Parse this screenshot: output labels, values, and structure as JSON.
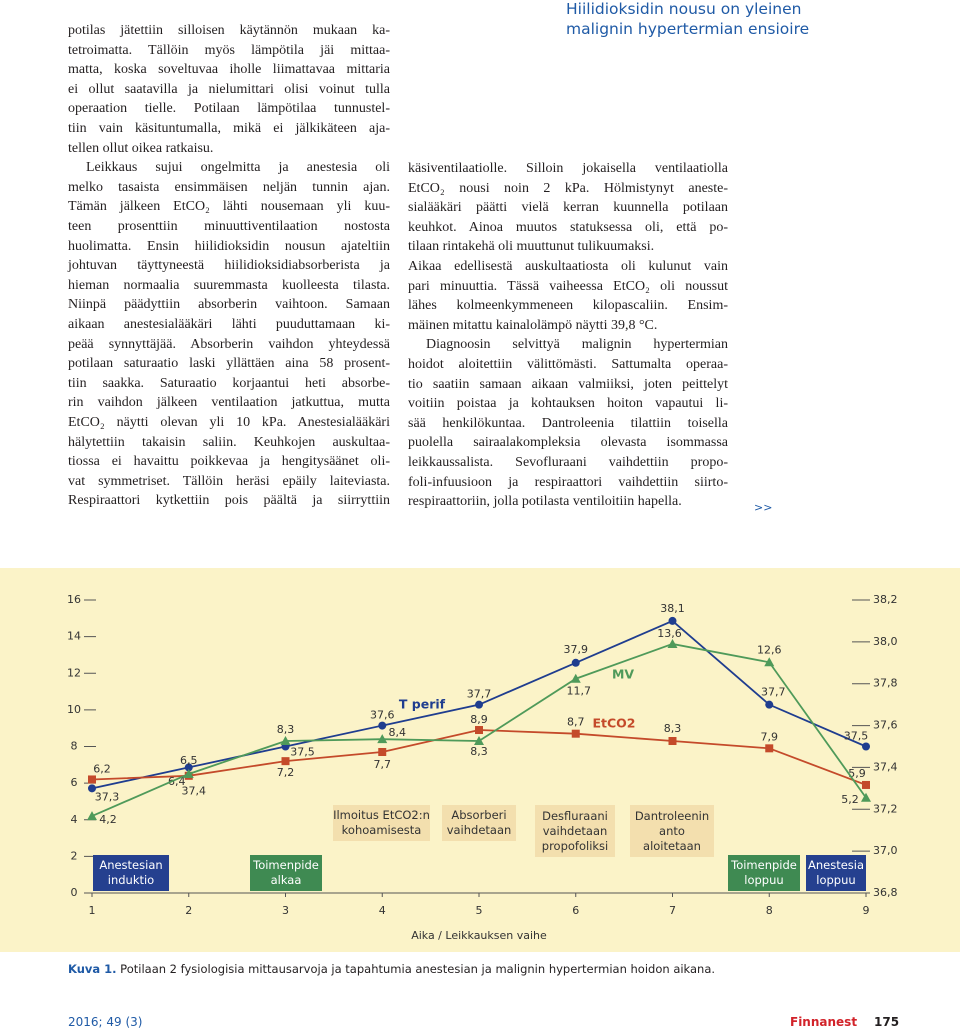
{
  "left_column": {
    "lines": [
      "potilas jätettiin silloisen käytännön mukaan ka-",
      "tetroimatta. Tällöin myös lämpötila jäi mittaa-",
      "matta, koska soveltuvaa iholle liimattavaa mittaria",
      "ei ollut saatavilla ja nielumittari olisi voinut tulla",
      "operaation tielle. Potilaan lämpötilaa tunnustel-",
      "tiin vain käsituntumalla, mikä ei jälkikäteen aja-",
      "tellen ollut oikea ratkaisu.",
      "Leikkaus sujui ongelmitta ja anestesia oli",
      "melko tasaista ensimmäisen neljän tunnin ajan.",
      "Tämän jälkeen EtCO₂ lähti nousemaan yli kuu-",
      "teen prosenttiin minuuttiventilaation nostosta",
      "huolimatta. Ensin hiilidioksidin nousun ajateltiin",
      "johtuvan täyttyneestä hiilidioksidiabsorberista ja",
      "hieman normaalia suuremmasta kuolleesta tilasta.",
      "Niinpä päädyttiin absorberin vaihtoon. Samaan",
      "aikaan anestesialääkäri lähti puuduttamaan ki-",
      "peää synnyttäjää. Absorberin vaihdon yhteydessä",
      "potilaan saturaatio laski yllättäen aina 58 prosent-",
      "tiin saakka. Saturaatio korjaantui heti absorbe-",
      "rin vaihdon jälkeen ventilaation jatkuttua, mutta",
      "EtCO₂ näytti olevan yli 10 kPa. Anestesialääkäri",
      "hälytettiin takaisin saliin. Keuhkojen auskultaa-",
      "tiossa ei havaittu poikkevaa ja hengitysäänet oli-",
      "vat symmetriset. Tällöin heräsi epäily laiteviasta.",
      "Respiraattori kytkettiin pois päältä ja siirryttiin"
    ]
  },
  "right_column": {
    "heading": [
      "Hiilidioksidin nousu on yleinen",
      "malignin hypertermian ensioire"
    ],
    "lines": [
      "käsiventilaatiolle. Silloin jokaisella ventilaatiolla",
      "EtCO₂ nousi noin 2 kPa. Hölmistynyt aneste-",
      "sialääkäri päätti vielä kerran kuunnella potilaan",
      "keuhkot. Ainoa muutos statuksessa oli, että po-",
      "tilaan rintakehä oli muuttunut tulikuumaksi.",
      "Aikaa edellisestä auskultaatiosta oli kulunut vain",
      "pari minuuttia. Tässä vaiheessa EtCO₂ oli noussut",
      "lähes kolmeenkymmeneen kilopascaliin. Ensim-",
      "mäinen mitattu kainalolämpö näytti 39,8 °C.",
      "Diagnoosin selvittyä malignin hypertermian",
      "hoidot aloitettiin välittömästi. Sattumalta operaa-",
      "tio saatiin samaan aikaan valmiiksi, joten peittelyt",
      "voitiin poistaa ja kohtauksen hoiton vapautui li-",
      "sää henkilökuntaa. Dantroleenia tilattiin toisella",
      "puolella sairaalakompleksia olevasta isommassa",
      "leikkaussalista. Sevofluraani vaihdettiin propo-",
      "foli-infuusioon ja respiraattori vaihdettiin siirto-",
      "respiraattoriin, jolla potilasta ventiloitiin hapella."
    ],
    "continue_mark": ">>"
  },
  "chart_data": {
    "type": "line",
    "xlabel": "Aika / Leikkauksen vaihe",
    "x": [
      1,
      2,
      3,
      4,
      5,
      6,
      7,
      8,
      9
    ],
    "xlim": [
      1,
      9
    ],
    "xticks": [
      1,
      2,
      3,
      4,
      5,
      6,
      7,
      8,
      9
    ],
    "ylim": [
      0,
      16
    ],
    "yticks": [
      0,
      2,
      4,
      6,
      8,
      10,
      12,
      14,
      16
    ],
    "y2lim": [
      36.8,
      38.2
    ],
    "y2ticks": [
      {
        "value": 36.8,
        "label": "36,8"
      },
      {
        "value": 37.0,
        "label": "37,0"
      },
      {
        "value": 37.2,
        "label": "37,2"
      },
      {
        "value": 37.4,
        "label": "37,4"
      },
      {
        "value": 37.6,
        "label": "37,6"
      },
      {
        "value": 37.8,
        "label": "37,8"
      },
      {
        "value": 38.0,
        "label": "38,0"
      },
      {
        "value": 38.2,
        "label": "38,2"
      }
    ],
    "series": [
      {
        "name": "T perif",
        "color": "#1f3d8f",
        "axis": "y2",
        "marker": "circle",
        "values": [
          37.3,
          37.4,
          37.5,
          37.6,
          37.7,
          37.9,
          38.1,
          37.7,
          37.5
        ],
        "value_labels": [
          "37,3",
          "37,4",
          "37,5",
          "37,6",
          "37,7",
          "37,9",
          "38,1",
          "37,7",
          "37,5"
        ]
      },
      {
        "name": "EtCO2",
        "color": "#c44a2a",
        "marker": "square",
        "values": [
          6.2,
          6.4,
          7.2,
          7.7,
          8.9,
          8.7,
          8.3,
          7.9,
          5.9
        ],
        "value_labels": [
          "6,2",
          "6,4",
          "7,2",
          "7,7",
          "8,9",
          "8,7",
          "8,3",
          "7,9",
          "5,9"
        ]
      },
      {
        "name": "MV",
        "color": "#4f9a5a",
        "marker": "triangle",
        "values": [
          4.2,
          6.5,
          8.3,
          8.4,
          8.3,
          11.7,
          13.6,
          12.6,
          5.2
        ],
        "value_labels": [
          "4,2",
          "6,5",
          "8,3",
          "8,4",
          "8,3",
          "11,7",
          "13,6",
          "12,6",
          "5,2"
        ]
      }
    ],
    "events": [
      {
        "label": "Anestesian\ninduktio",
        "color": "#25408f"
      },
      {
        "label": "Toimenpide\nalkaa",
        "color": "#3f8a52"
      },
      {
        "label": "Ilmoitus EtCO2:n\nkohoamisesta",
        "color": "#f3dfae"
      },
      {
        "label": "Absorberi\nvaihdetaan",
        "color": "#f3dfae"
      },
      {
        "label": "Desfluraani\nvaihdetaan\npropofoliksi",
        "color": "#f3dfae"
      },
      {
        "label": "Dantroleenin\nanto\naloitetaan",
        "color": "#f3dfae"
      },
      {
        "label": "Toimenpide\nloppuu",
        "color": "#3f8a52"
      },
      {
        "label": "Anestesia\nloppuu",
        "color": "#25408f"
      }
    ]
  },
  "caption": {
    "label": "Kuva 1.",
    "text": " Potilaan 2 fysiologisia mittausarvoja ja tapahtumia anestesian ja malignin hypertermian hoidon aikana."
  },
  "footer": {
    "issue": "2016; 49 (3)",
    "journal": "Finnanest",
    "page": "175"
  }
}
